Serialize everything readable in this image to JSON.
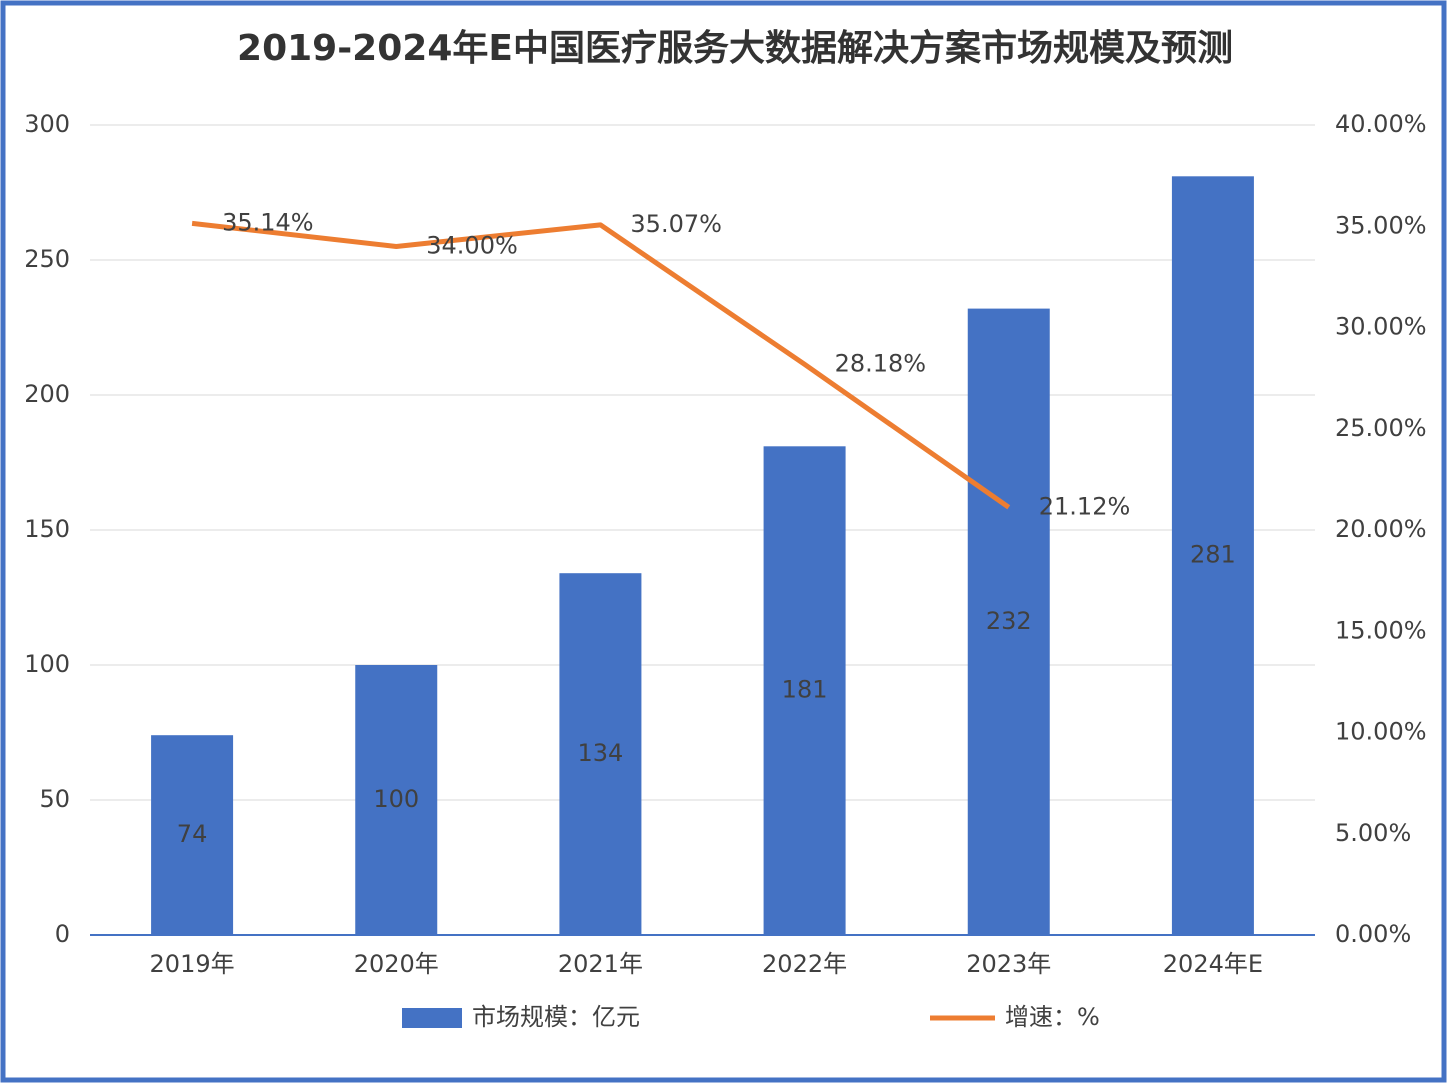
{
  "chart_data": {
    "type": "bar-line",
    "title": "2019-2024年E中国医疗服务大数据解决方案市场规模及预测",
    "categories": [
      "2019年",
      "2020年",
      "2021年",
      "2022年",
      "2023年",
      "2024年E"
    ],
    "series": [
      {
        "name": "市场规模：亿元",
        "type": "bar",
        "color": "#4472c4",
        "values": [
          74,
          100,
          134,
          181,
          232,
          281
        ]
      },
      {
        "name": "增速：%",
        "type": "line",
        "axis": "y2",
        "color": "#ed7d31",
        "values": [
          35.14,
          34.0,
          35.07,
          28.18,
          21.12,
          null
        ],
        "value_labels": [
          "35.14%",
          "34.00%",
          "35.07%",
          "28.18%",
          "21.12%",
          null
        ]
      }
    ],
    "ylim": [
      0,
      300
    ],
    "yticks": [
      0,
      50,
      100,
      150,
      200,
      250,
      300
    ],
    "y2lim": [
      0,
      40
    ],
    "y2ticks": [
      {
        "value": 0,
        "label": "0.00%"
      },
      {
        "value": 5,
        "label": "5.00%"
      },
      {
        "value": 10,
        "label": "10.00%"
      },
      {
        "value": 15,
        "label": "15.00%"
      },
      {
        "value": 20,
        "label": "20.00%"
      },
      {
        "value": 25,
        "label": "25.00%"
      },
      {
        "value": 30,
        "label": "30.00%"
      },
      {
        "value": 35,
        "label": "35.00%"
      },
      {
        "value": 40,
        "label": "40.00%"
      }
    ],
    "grid": true,
    "legend": "bottom"
  }
}
